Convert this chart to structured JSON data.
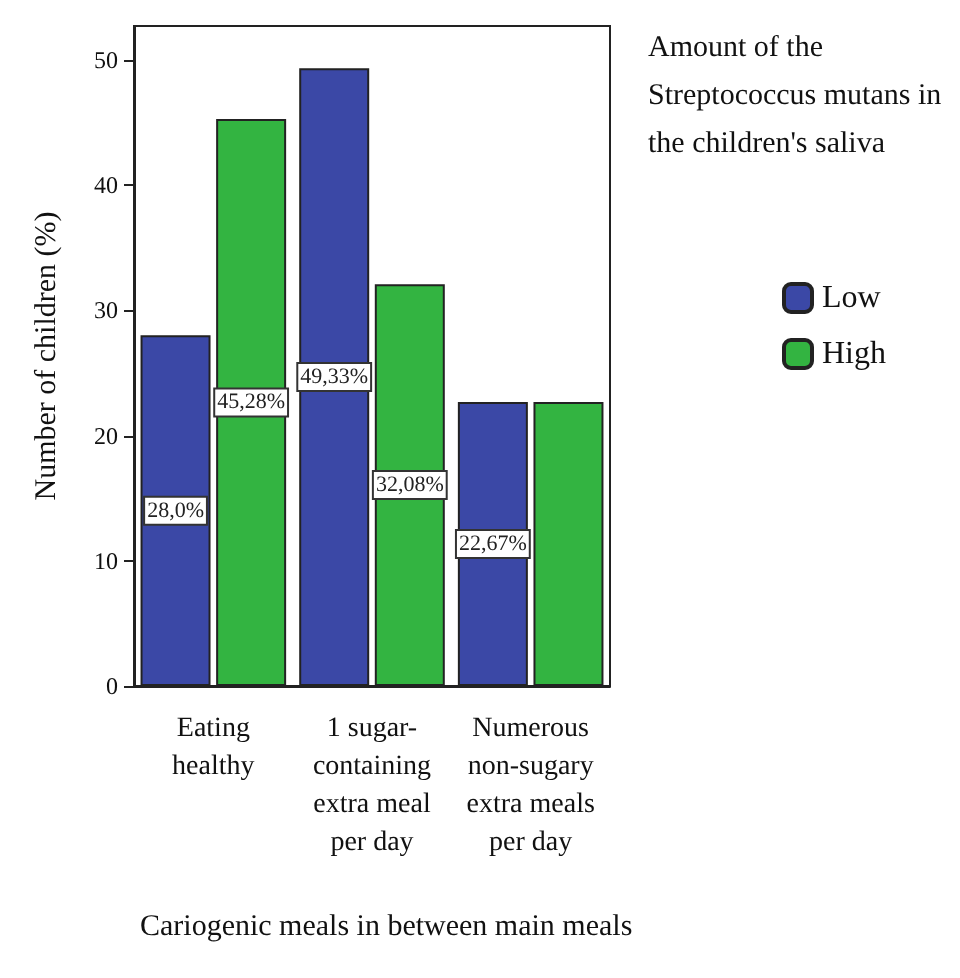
{
  "chart_data": {
    "type": "bar",
    "xlabel": "Cariogenic meals in between main meals",
    "ylabel": "Number of children (%)",
    "legend_title": "Amount of the Streptococcus mutans in the children's saliva",
    "categories": [
      "Eating healthy",
      "1 sugar-containing extra meal per day",
      "Numerous non-sugary extra meals per day"
    ],
    "series": [
      {
        "name": "Low",
        "color": "#3b48a6",
        "values": [
          28.0,
          49.33,
          22.67
        ],
        "value_labels": [
          "28,0%",
          "49,33%",
          "22,67%"
        ]
      },
      {
        "name": "High",
        "color": "#33b441",
        "values": [
          45.28,
          32.08,
          22.67
        ],
        "value_labels": [
          "45,28%",
          "32,08%",
          null
        ]
      }
    ],
    "ylim": [
      0,
      52.7
    ],
    "yticks": [
      0,
      10,
      20,
      30,
      40,
      50
    ],
    "grid": false,
    "legend": "right"
  }
}
